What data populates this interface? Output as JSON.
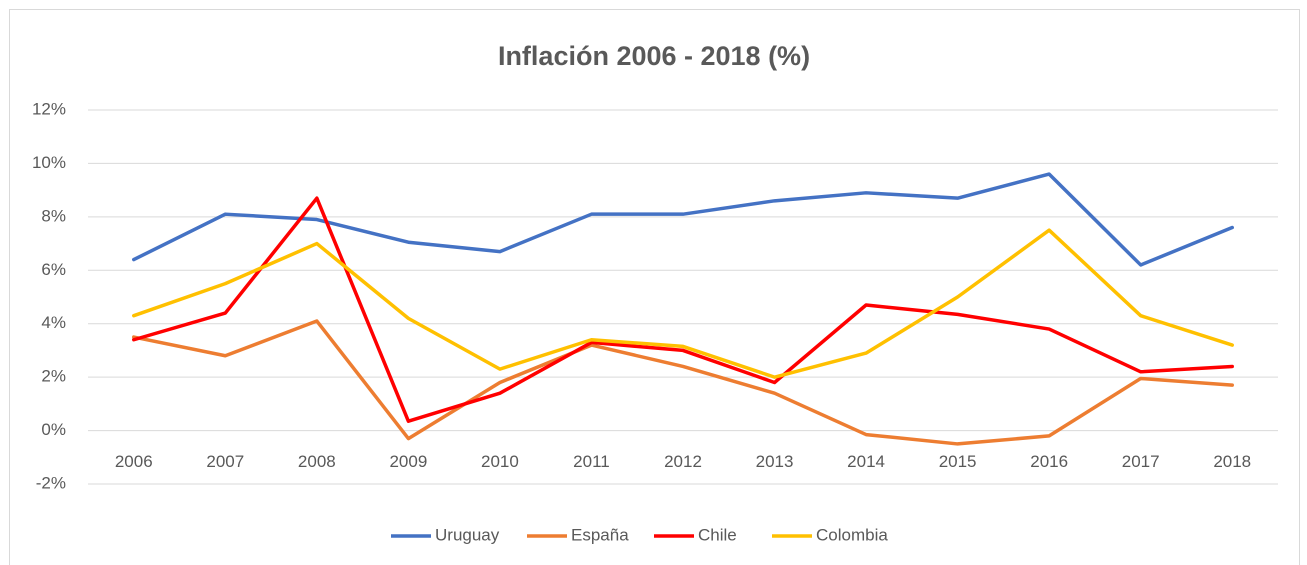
{
  "chart_data": {
    "type": "line",
    "title": "Inflación 2006 - 2018 (%)",
    "categories": [
      "2006",
      "2007",
      "2008",
      "2009",
      "2010",
      "2011",
      "2012",
      "2013",
      "2014",
      "2015",
      "2016",
      "2017",
      "2018"
    ],
    "series": [
      {
        "name": "Uruguay",
        "color": "#4472c4",
        "values": [
          6.4,
          8.1,
          7.9,
          7.05,
          6.7,
          8.1,
          8.1,
          8.6,
          8.9,
          8.7,
          9.6,
          6.2,
          7.6
        ]
      },
      {
        "name": "España",
        "color": "#ed7d31",
        "values": [
          3.5,
          2.8,
          4.1,
          -0.3,
          1.8,
          3.2,
          2.4,
          1.4,
          -0.15,
          -0.5,
          -0.2,
          1.95,
          1.7
        ]
      },
      {
        "name": "Chile",
        "color": "#ff0000",
        "values": [
          3.4,
          4.4,
          8.7,
          0.35,
          1.4,
          3.3,
          3.0,
          1.8,
          4.7,
          4.35,
          3.8,
          2.2,
          2.4
        ]
      },
      {
        "name": "Colombia",
        "color": "#ffc000",
        "values": [
          4.3,
          5.5,
          7.0,
          4.2,
          2.3,
          3.4,
          3.15,
          2.0,
          2.9,
          5.0,
          7.5,
          4.3,
          3.2
        ]
      }
    ],
    "ylim": [
      -2,
      12
    ],
    "yticks": [
      {
        "value": -2,
        "label": "-2%"
      },
      {
        "value": 0,
        "label": "0%"
      },
      {
        "value": 2,
        "label": "2%"
      },
      {
        "value": 4,
        "label": "4%"
      },
      {
        "value": 6,
        "label": "6%"
      },
      {
        "value": 8,
        "label": "8%"
      },
      {
        "value": 10,
        "label": "10%"
      },
      {
        "value": 12,
        "label": "12%"
      }
    ],
    "grid": true,
    "legend": "bottom"
  }
}
